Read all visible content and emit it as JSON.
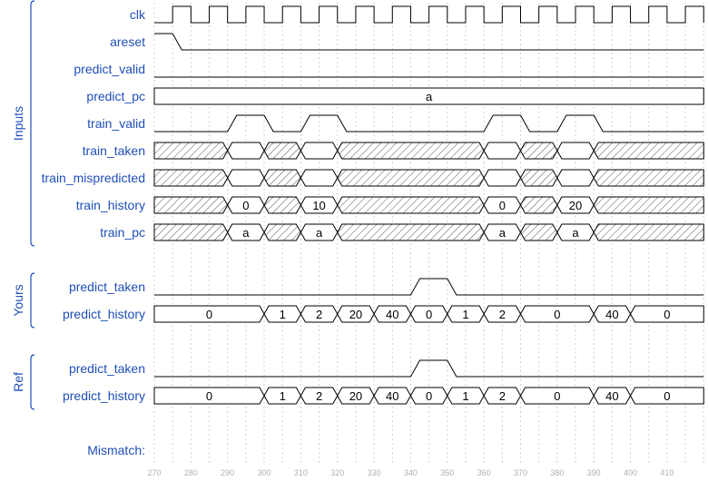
{
  "groups": [
    {
      "label": "Inputs",
      "signals": [
        {
          "name": "clk",
          "kind": "clock"
        },
        {
          "name": "areset",
          "kind": "bit",
          "init": 1,
          "edges": [
            [
              275,
              0
            ]
          ]
        },
        {
          "name": "predict_valid",
          "kind": "bit",
          "init": 0,
          "edges": []
        },
        {
          "name": "predict_pc",
          "kind": "bus",
          "segments": [
            [
              270,
              420,
              "a"
            ]
          ]
        },
        {
          "name": "train_valid",
          "kind": "bit",
          "init": 0,
          "edges": [
            [
              290,
              1
            ],
            [
              300,
              0
            ],
            [
              310,
              1
            ],
            [
              320,
              0
            ],
            [
              360,
              1
            ],
            [
              370,
              0
            ],
            [
              380,
              1
            ],
            [
              390,
              0
            ]
          ]
        },
        {
          "name": "train_taken",
          "kind": "bus",
          "segments": [
            [
              270,
              290,
              "x"
            ],
            [
              290,
              300,
              ""
            ],
            [
              300,
              310,
              "x"
            ],
            [
              310,
              320,
              ""
            ],
            [
              320,
              360,
              "x"
            ],
            [
              360,
              370,
              ""
            ],
            [
              370,
              380,
              "x"
            ],
            [
              380,
              390,
              ""
            ],
            [
              390,
              420,
              "x"
            ]
          ]
        },
        {
          "name": "train_mispredicted",
          "kind": "bus",
          "segments": [
            [
              270,
              290,
              "x"
            ],
            [
              290,
              300,
              ""
            ],
            [
              300,
              310,
              "x"
            ],
            [
              310,
              320,
              ""
            ],
            [
              320,
              360,
              "x"
            ],
            [
              360,
              370,
              ""
            ],
            [
              370,
              380,
              "x"
            ],
            [
              380,
              390,
              ""
            ],
            [
              390,
              420,
              "x"
            ]
          ]
        },
        {
          "name": "train_history",
          "kind": "bus",
          "segments": [
            [
              270,
              290,
              "x"
            ],
            [
              290,
              300,
              "0"
            ],
            [
              300,
              310,
              "x"
            ],
            [
              310,
              320,
              "10"
            ],
            [
              320,
              360,
              "x"
            ],
            [
              360,
              370,
              "0"
            ],
            [
              370,
              380,
              "x"
            ],
            [
              380,
              390,
              "20"
            ],
            [
              390,
              420,
              "x"
            ]
          ]
        },
        {
          "name": "train_pc",
          "kind": "bus",
          "segments": [
            [
              270,
              290,
              "x"
            ],
            [
              290,
              300,
              "a"
            ],
            [
              300,
              310,
              "x"
            ],
            [
              310,
              320,
              "a"
            ],
            [
              320,
              360,
              "x"
            ],
            [
              360,
              370,
              "a"
            ],
            [
              370,
              380,
              "x"
            ],
            [
              380,
              390,
              "a"
            ],
            [
              390,
              420,
              "x"
            ]
          ]
        }
      ]
    },
    {
      "label": "Yours",
      "signals": [
        {
          "name": "predict_taken",
          "kind": "bit",
          "init": 0,
          "edges": [
            [
              340,
              1
            ],
            [
              350,
              0
            ]
          ]
        },
        {
          "name": "predict_history",
          "kind": "bus",
          "segments": [
            [
              270,
              300,
              "0"
            ],
            [
              300,
              310,
              "1"
            ],
            [
              310,
              320,
              "2"
            ],
            [
              320,
              330,
              "20"
            ],
            [
              330,
              340,
              "40"
            ],
            [
              340,
              350,
              "0"
            ],
            [
              350,
              360,
              "1"
            ],
            [
              360,
              370,
              "2"
            ],
            [
              370,
              390,
              "0"
            ],
            [
              390,
              400,
              "40"
            ],
            [
              400,
              420,
              "0"
            ]
          ]
        }
      ]
    },
    {
      "label": "Ref",
      "signals": [
        {
          "name": "predict_taken",
          "kind": "bit",
          "init": 0,
          "edges": [
            [
              340,
              1
            ],
            [
              350,
              0
            ]
          ]
        },
        {
          "name": "predict_history",
          "kind": "bus",
          "segments": [
            [
              270,
              300,
              "0"
            ],
            [
              300,
              310,
              "1"
            ],
            [
              310,
              320,
              "2"
            ],
            [
              320,
              330,
              "20"
            ],
            [
              330,
              340,
              "40"
            ],
            [
              340,
              350,
              "0"
            ],
            [
              350,
              360,
              "1"
            ],
            [
              360,
              370,
              "2"
            ],
            [
              370,
              390,
              "0"
            ],
            [
              390,
              400,
              "40"
            ],
            [
              400,
              420,
              "0"
            ]
          ]
        }
      ]
    }
  ],
  "mismatch_label": "Mismatch:",
  "time_axis": {
    "start": 270,
    "end": 410,
    "step": 10
  },
  "colors": {
    "label": "#1f4fb8",
    "wave": "#000000",
    "grid": "#d0d0d0",
    "hatch": "#555555",
    "tick": "#b0b0b0"
  }
}
